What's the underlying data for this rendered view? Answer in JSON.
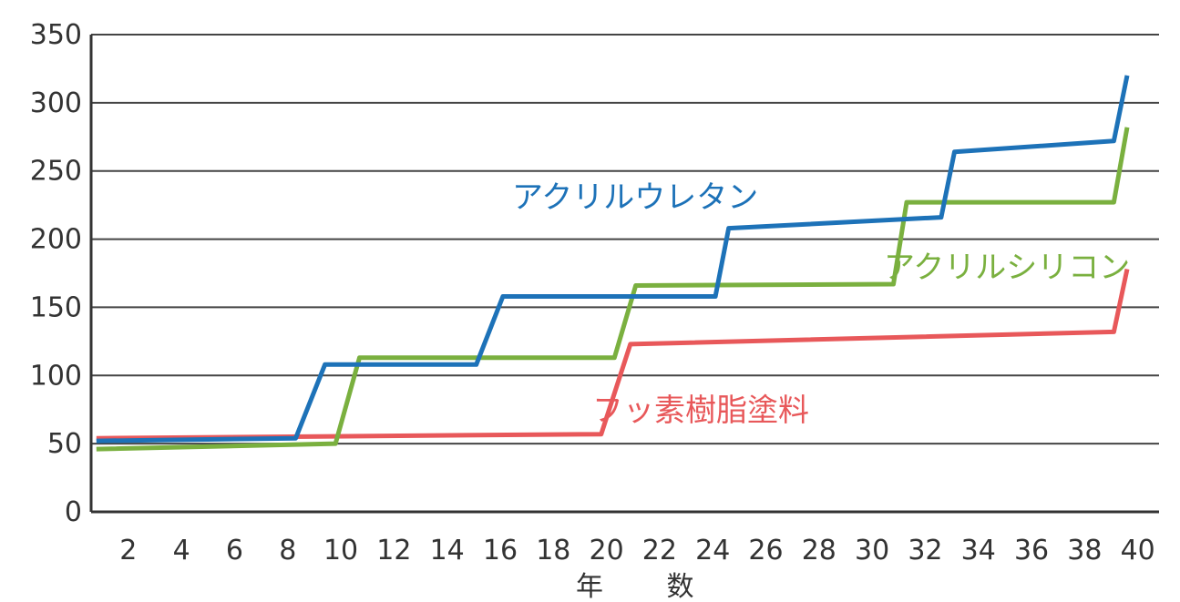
{
  "chart_data": {
    "type": "line",
    "xlabel": "年 数",
    "ylabel": "",
    "ylim": [
      0,
      350
    ],
    "yticks": [
      0,
      50,
      100,
      150,
      200,
      250,
      300,
      350
    ],
    "xticks": [
      2,
      4,
      6,
      8,
      10,
      12,
      14,
      16,
      18,
      20,
      22,
      24,
      26,
      28,
      30,
      32,
      34,
      36,
      38,
      40
    ],
    "xlim": [
      0.6,
      40.8
    ],
    "grid": true,
    "series": [
      {
        "name": "アクリルウレタン",
        "color": "#1d72b8",
        "x": [
          0.8,
          8.3,
          9.4,
          15.1,
          16.1,
          24.1,
          24.6,
          32.6,
          33.1,
          39.1,
          39.6
        ],
        "y": [
          52,
          54,
          108,
          108,
          158,
          158,
          208,
          216,
          264,
          272,
          320
        ]
      },
      {
        "name": "アクリルシリコン",
        "color": "#7ab03f",
        "x": [
          0.8,
          9.8,
          10.7,
          20.3,
          21.1,
          30.8,
          31.3,
          39.1,
          39.6
        ],
        "y": [
          46,
          50,
          113,
          113,
          166,
          167,
          227,
          227,
          282
        ]
      },
      {
        "name": "フッ素樹脂塗料",
        "color": "#e8585a",
        "x": [
          0.8,
          19.8,
          20.9,
          39.1,
          39.6
        ],
        "y": [
          54,
          57,
          123,
          132,
          178
        ]
      }
    ]
  }
}
